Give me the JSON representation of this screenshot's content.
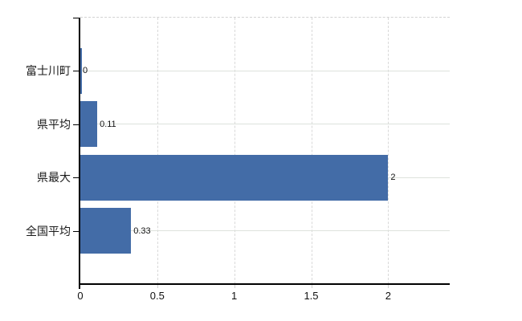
{
  "chart_data": {
    "type": "bar",
    "orientation": "horizontal",
    "title": "",
    "xlabel": "",
    "ylabel": "",
    "categories": [
      "富士川町",
      "県平均",
      "県最大",
      "全国平均"
    ],
    "values": [
      0,
      0.11,
      2,
      0.33
    ],
    "value_labels": [
      "0",
      "0.11",
      "2",
      "0.33"
    ],
    "x_ticks": [
      0,
      0.5,
      1,
      1.5,
      2
    ],
    "x_tick_labels": [
      "0",
      "0.5",
      "1",
      "1.5",
      "2"
    ],
    "xlim": [
      0,
      2.4
    ],
    "grid": true,
    "legend": false,
    "colors": {
      "bar": "#436ca7",
      "axis": "#000000",
      "hgrid": "#dde2dc",
      "vgrid": "#d9d9d9",
      "top_border": "#d2d2d2",
      "text": "#111111",
      "background": "#ffffff"
    }
  }
}
